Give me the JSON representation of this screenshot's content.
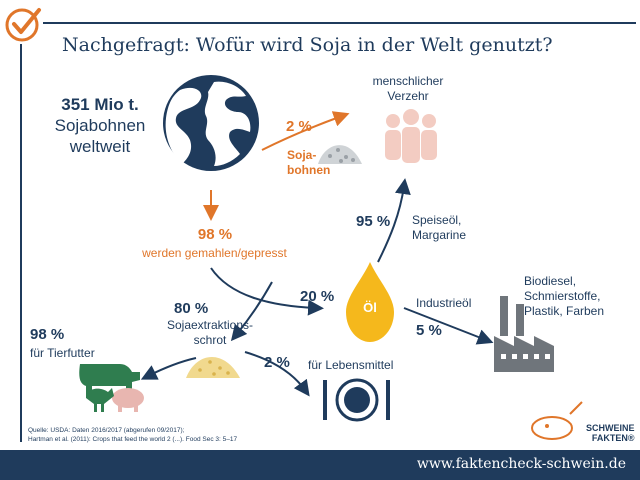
{
  "header": {
    "title": "Nachgefragt: Wofür wird Soja in der Welt genutzt?"
  },
  "production": {
    "amount": "351 Mio t.",
    "line2": "Sojabohnen",
    "line3": "weltweit"
  },
  "human": {
    "label_1": "menschlicher",
    "label_2": "Verzehr"
  },
  "beans": {
    "percent": "2 %",
    "label_1": "Soja-",
    "label_2": "bohnen"
  },
  "pressed": {
    "percent": "98 %",
    "label": "werden gemahlen/gepresst"
  },
  "oil": {
    "percent": "20 %",
    "drop_label": "Öl",
    "food_percent": "95 %",
    "food_label_1": "Speiseöl,",
    "food_label_2": "Margarine",
    "industry_label": "Industrieöl",
    "industry_percent": "5 %",
    "industry_uses_1": "Biodiesel,",
    "industry_uses_2": "Schmierstoffe,",
    "industry_uses_3": "Plastik, Farben"
  },
  "meal": {
    "percent": "80 %",
    "label_1": "Sojaextraktions-",
    "label_2": "schrot"
  },
  "feed": {
    "percent": "98 %",
    "label": "für Tierfutter"
  },
  "foodstuff": {
    "percent": "2 %",
    "label": "für Lebensmittel"
  },
  "source": {
    "line1": "Quelle: USDA: Daten 2016/2017 (abgerufen 09/2017);",
    "line2": "Hartman et al. (2011): Crops that feed the world 2 (...). Food Sec 3: 5–17"
  },
  "logo": {
    "line1": "SCHWEINE",
    "line2": "FAKTEN®"
  },
  "footer": {
    "url": "www.faktencheck-schwein.de"
  },
  "colors": {
    "navy": "#1f3b5c",
    "orange": "#e0762a",
    "yellow": "#f5b81c",
    "green": "#2f7d4f",
    "grey": "#8a8a8a"
  }
}
